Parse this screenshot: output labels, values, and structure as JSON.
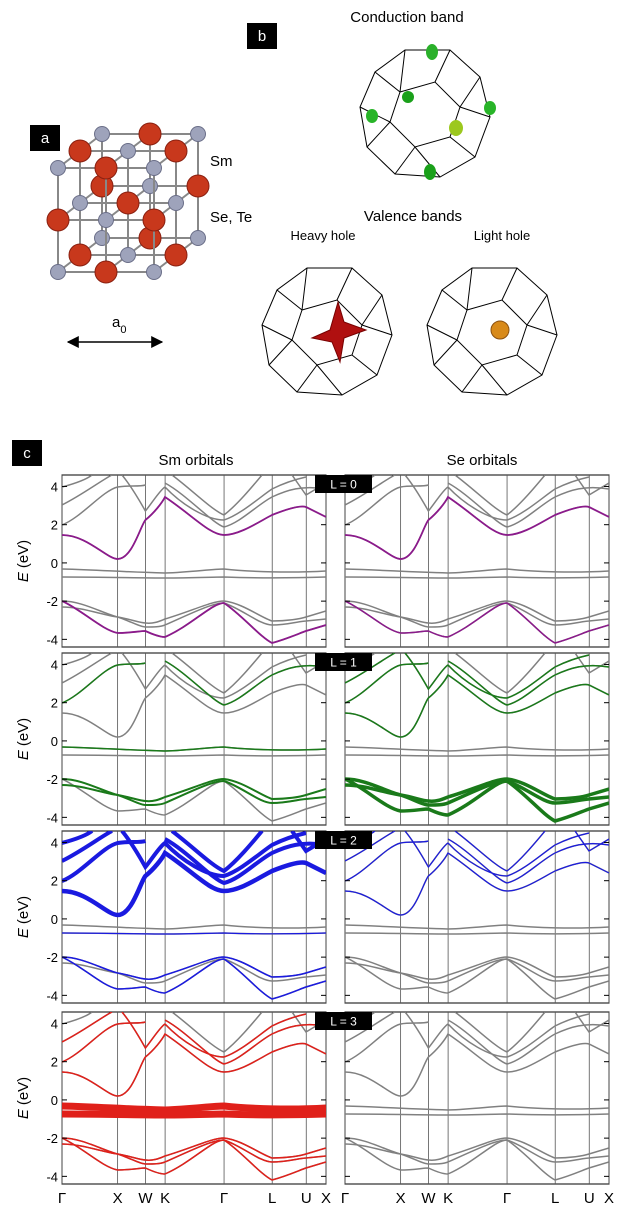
{
  "panel_a": {
    "label": "a",
    "atom_1": "Sm",
    "atom_2": "Se, Te",
    "lattice": "a",
    "lattice_sub": "0"
  },
  "panel_b": {
    "label": "b",
    "conduction_title": "Conduction band",
    "valence_title": "Valence bands",
    "heavy_hole": "Heavy hole",
    "light_hole": "Light hole"
  },
  "panel_c": {
    "label": "c",
    "columns": [
      "Sm orbitals",
      "Se orbitals"
    ],
    "rows": [
      {
        "label": "L = 0",
        "color": "#8b1a8b"
      },
      {
        "label": "L = 1",
        "color": "#1a7a1a"
      },
      {
        "label": "L = 2",
        "color": "#1a1ae0"
      },
      {
        "label": "L = 3",
        "color": "#e0201a"
      }
    ],
    "y_label_symbol": "E",
    "y_label_unit": "(eV)",
    "ylim": [
      -4.4,
      4.6
    ],
    "yticks": [
      -4,
      -2,
      0,
      2,
      4
    ],
    "xlim": [
      0,
      4.747
    ],
    "xticks": [
      {
        "value": 0,
        "label": "Γ"
      },
      {
        "value": 1,
        "label": "X"
      },
      {
        "value": 1.5,
        "label": "W"
      },
      {
        "value": 1.854,
        "label": "K"
      },
      {
        "value": 2.914,
        "label": "Γ"
      },
      {
        "value": 3.78,
        "label": "L"
      },
      {
        "value": 4.392,
        "label": "U"
      },
      {
        "value": 4.747,
        "label": "X"
      }
    ],
    "band_color": "#808080"
  }
}
